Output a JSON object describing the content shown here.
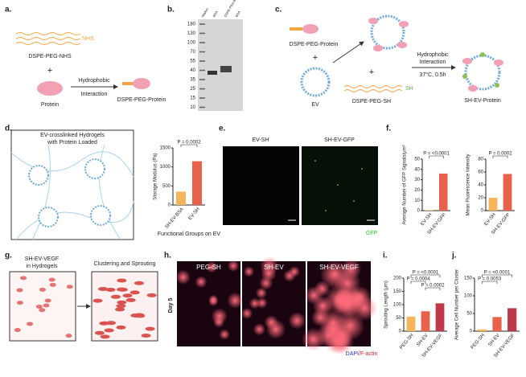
{
  "panels": {
    "a": {
      "label": "a.",
      "reagent": "DSPE-PEG-NHS",
      "group": "NHS",
      "plus": "+",
      "protein": "Protein",
      "arrow_top": "Hydrophobic",
      "arrow_bottom": "Interaction",
      "product": "DSPE-PEG-Protein"
    },
    "b": {
      "label": "b.",
      "ladder": [
        "180",
        "130",
        "100",
        "70",
        "55",
        "40",
        "35",
        "25",
        "15",
        "10"
      ],
      "lanes": [
        "Marker",
        "BSA",
        "DSPE-PEG-BSA",
        "BSA"
      ]
    },
    "c": {
      "label": "c.",
      "reagent": "DSPE-PEG-Protein",
      "plus1": "+",
      "ev": "EV",
      "arrow_top": "Hydrophobic",
      "arrow_mid": "Interaction",
      "arrow_bottom": "37°C, 0.5h",
      "plus2": "+",
      "group": "SH",
      "linker": "DSPE-PEG-SH",
      "product": "SH-EV-Protein"
    },
    "d": {
      "label": "d.",
      "title1": "EV-crosslinked Hydrogels",
      "title2": "with Protein Loaded"
    },
    "e": {
      "label": "e.",
      "left": "EV-SH",
      "right": "SH-EV-GFP",
      "channel": "GFP"
    },
    "f": {
      "label": "f."
    },
    "g": {
      "label": "g.",
      "left1": "SH-EV-VEGF",
      "left2": "in Hydrogels",
      "right": "Clustering and Sprouting"
    },
    "h": {
      "label": "h.",
      "images": [
        "PEG-SH",
        "SH-EV",
        "SH-EV-VEGF"
      ],
      "row": "Day 5",
      "stain1": "DAPI",
      "stain2": "/F-actin"
    },
    "i": {
      "label": "i."
    },
    "j": {
      "label": "j."
    }
  },
  "chart_data": [
    {
      "type": "bar",
      "ylabel": "Storage Modulus (Pa)",
      "xlabel": "Functional Groups on EV",
      "categories": [
        "SH-EV-BSA",
        "EV-SH"
      ],
      "values": [
        350,
        1150
      ],
      "colors": [
        "#f5b55a",
        "#e8614a"
      ],
      "ylim": [
        0,
        1500
      ],
      "yticks": [
        0,
        500,
        1000,
        1500
      ],
      "annotations": [
        "P = 0.0002"
      ]
    },
    {
      "type": "bar",
      "ylabel": "Average Number of GFP Signals/μm²",
      "categories": [
        "EV-SH",
        "SH-EV-GFP"
      ],
      "values": [
        0.5,
        36
      ],
      "colors": [
        "#f5b55a",
        "#e8614a"
      ],
      "ylim": [
        0,
        50
      ],
      "yticks": [
        0,
        10,
        20,
        30,
        40,
        50
      ],
      "annotations": [
        "P = <0.0001"
      ]
    },
    {
      "type": "bar",
      "ylabel": "Mean Fluorescence Intensity",
      "categories": [
        "EV-SH",
        "SH-EV-GFP"
      ],
      "values": [
        20,
        57
      ],
      "colors": [
        "#f5b55a",
        "#e8614a"
      ],
      "ylim": [
        0,
        80
      ],
      "yticks": [
        0,
        20,
        40,
        60,
        80
      ],
      "annotations": [
        "P = 0.0002"
      ]
    },
    {
      "type": "bar",
      "ylabel": "Sprouting Length (μm)",
      "categories": [
        "PEG-SH",
        "SH-EV",
        "SH-EV-VEGF"
      ],
      "values": [
        55,
        75,
        105
      ],
      "colors": [
        "#f5b55a",
        "#e8614a",
        "#c0394b"
      ],
      "ylim": [
        0,
        200
      ],
      "yticks": [
        0,
        50,
        100,
        150,
        200
      ],
      "annotations": [
        "P = <0.0001",
        "P = 0.0004",
        "P = 0.0002"
      ]
    },
    {
      "type": "bar",
      "ylabel": "Average Cell Number per Cluster",
      "categories": [
        "PEG-SH",
        "SH-EV",
        "SH-EV-VEGF"
      ],
      "values": [
        5,
        40,
        65
      ],
      "colors": [
        "#f5b55a",
        "#e8614a",
        "#c0394b"
      ],
      "ylim": [
        0,
        150
      ],
      "yticks": [
        0,
        50,
        100,
        150
      ],
      "annotations": [
        "P = <0.0001",
        "P = 0.0053"
      ]
    }
  ]
}
